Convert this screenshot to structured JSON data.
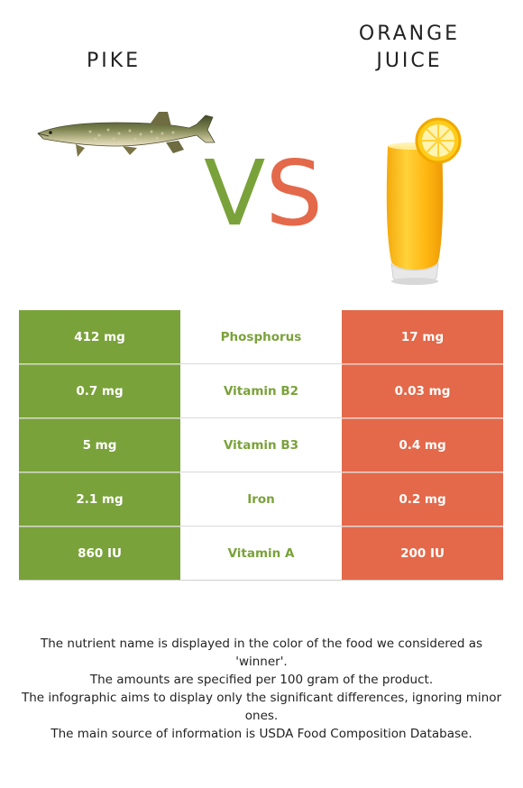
{
  "header": {
    "food_left": "PIKE",
    "food_right_line1": "ORANGE",
    "food_right_line2": "JUICE",
    "vs_v": "V",
    "vs_s": "S"
  },
  "images": {
    "left": "pike-fish-icon",
    "right": "orange-juice-glass-icon"
  },
  "colors": {
    "left_winner": "#7aa23a",
    "right": "#e3694a"
  },
  "rows": [
    {
      "left": "412 mg",
      "nutrient": "Phosphorus",
      "right": "17 mg"
    },
    {
      "left": "0.7 mg",
      "nutrient": "Vitamin B2",
      "right": "0.03 mg"
    },
    {
      "left": "5 mg",
      "nutrient": "Vitamin B3",
      "right": "0.4 mg"
    },
    {
      "left": "2.1 mg",
      "nutrient": "Iron",
      "right": "0.2 mg"
    },
    {
      "left": "860 IU",
      "nutrient": "Vitamin A",
      "right": "200 IU"
    }
  ],
  "footer": {
    "line1": "The nutrient name is displayed in the color of the food we considered as 'winner'.",
    "line2": "The amounts are specified per 100 gram of the product.",
    "line3": "The infographic aims to display only the significant differences, ignoring minor ones.",
    "line4": "The main source of information is USDA Food Composition Database."
  }
}
